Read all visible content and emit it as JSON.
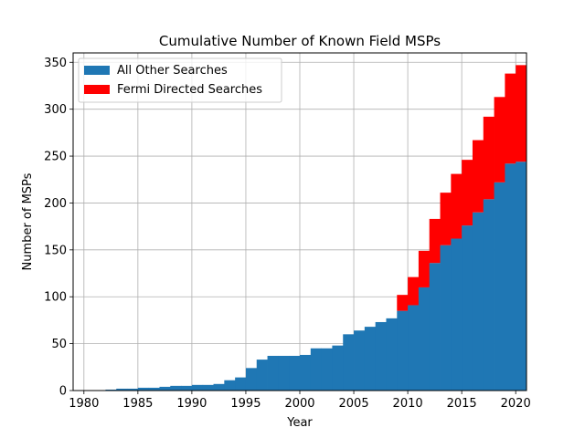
{
  "chart_data": {
    "type": "bar",
    "title": "Cumulative Number of Known Field MSPs",
    "xlabel": "Year",
    "ylabel": "Number of MSPs",
    "xlim": [
      1979,
      2021
    ],
    "ylim": [
      0,
      360
    ],
    "xticks": [
      1980,
      1985,
      1990,
      1995,
      2000,
      2005,
      2010,
      2015,
      2020
    ],
    "yticks": [
      0,
      50,
      100,
      150,
      200,
      250,
      300,
      350
    ],
    "grid": true,
    "legend_position": "top-left",
    "stacked": true,
    "x": [
      1982,
      1983,
      1984,
      1985,
      1986,
      1987,
      1988,
      1989,
      1990,
      1991,
      1992,
      1993,
      1994,
      1995,
      1996,
      1997,
      1998,
      1999,
      2000,
      2001,
      2002,
      2003,
      2004,
      2005,
      2006,
      2007,
      2008,
      2009,
      2010,
      2011,
      2012,
      2013,
      2014,
      2015,
      2016,
      2017,
      2018,
      2019,
      2020
    ],
    "series": [
      {
        "name": "All Other Searches",
        "color": "#1f77b4",
        "values": [
          1,
          2,
          2,
          3,
          3,
          4,
          5,
          5,
          6,
          6,
          7,
          11,
          14,
          24,
          33,
          37,
          37,
          37,
          38,
          45,
          45,
          48,
          60,
          64,
          68,
          73,
          77,
          85,
          91,
          110,
          136,
          155,
          162,
          176,
          190,
          204,
          222,
          242,
          244
        ]
      },
      {
        "name": "Fermi Directed Searches",
        "color": "#ff0000",
        "values": [
          0,
          0,
          0,
          0,
          0,
          0,
          0,
          0,
          0,
          0,
          0,
          0,
          0,
          0,
          0,
          0,
          0,
          0,
          0,
          0,
          0,
          0,
          0,
          0,
          0,
          0,
          0,
          17,
          30,
          39,
          47,
          56,
          69,
          70,
          77,
          88,
          91,
          96,
          103
        ]
      }
    ]
  }
}
